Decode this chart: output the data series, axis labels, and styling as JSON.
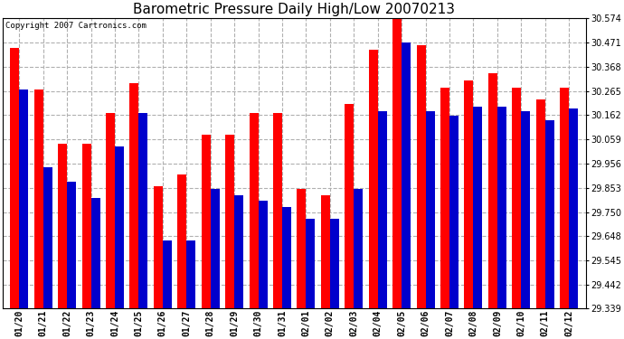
{
  "title": "Barometric Pressure Daily High/Low 20070213",
  "copyright": "Copyright 2007 Cartronics.com",
  "categories": [
    "01/20",
    "01/21",
    "01/22",
    "01/23",
    "01/24",
    "01/25",
    "01/26",
    "01/27",
    "01/28",
    "01/29",
    "01/30",
    "01/31",
    "02/01",
    "02/02",
    "02/03",
    "02/04",
    "02/05",
    "02/06",
    "02/07",
    "02/08",
    "02/09",
    "02/10",
    "02/11",
    "02/12"
  ],
  "highs": [
    30.45,
    30.27,
    30.04,
    30.04,
    30.17,
    30.3,
    29.86,
    29.91,
    30.08,
    30.08,
    30.17,
    30.17,
    29.85,
    29.82,
    30.21,
    30.44,
    30.58,
    30.46,
    30.28,
    30.31,
    30.34,
    30.28,
    30.23,
    30.28
  ],
  "lows": [
    30.27,
    29.94,
    29.88,
    29.81,
    30.03,
    30.17,
    29.63,
    29.63,
    29.85,
    29.82,
    29.8,
    29.77,
    29.72,
    29.72,
    29.85,
    30.18,
    30.47,
    30.18,
    30.16,
    30.2,
    30.2,
    30.18,
    30.14,
    30.19
  ],
  "bar_color_high": "#ff0000",
  "bar_color_low": "#0000cc",
  "background_color": "#ffffff",
  "plot_bg_color": "#ffffff",
  "grid_color": "#b0b0b0",
  "ymin": 29.339,
  "ymax": 30.574,
  "ytick_values": [
    29.339,
    29.442,
    29.545,
    29.648,
    29.75,
    29.853,
    29.956,
    30.059,
    30.162,
    30.265,
    30.368,
    30.471,
    30.574
  ],
  "title_fontsize": 11,
  "copyright_fontsize": 6.5,
  "tick_fontsize": 7,
  "bar_width": 0.38
}
